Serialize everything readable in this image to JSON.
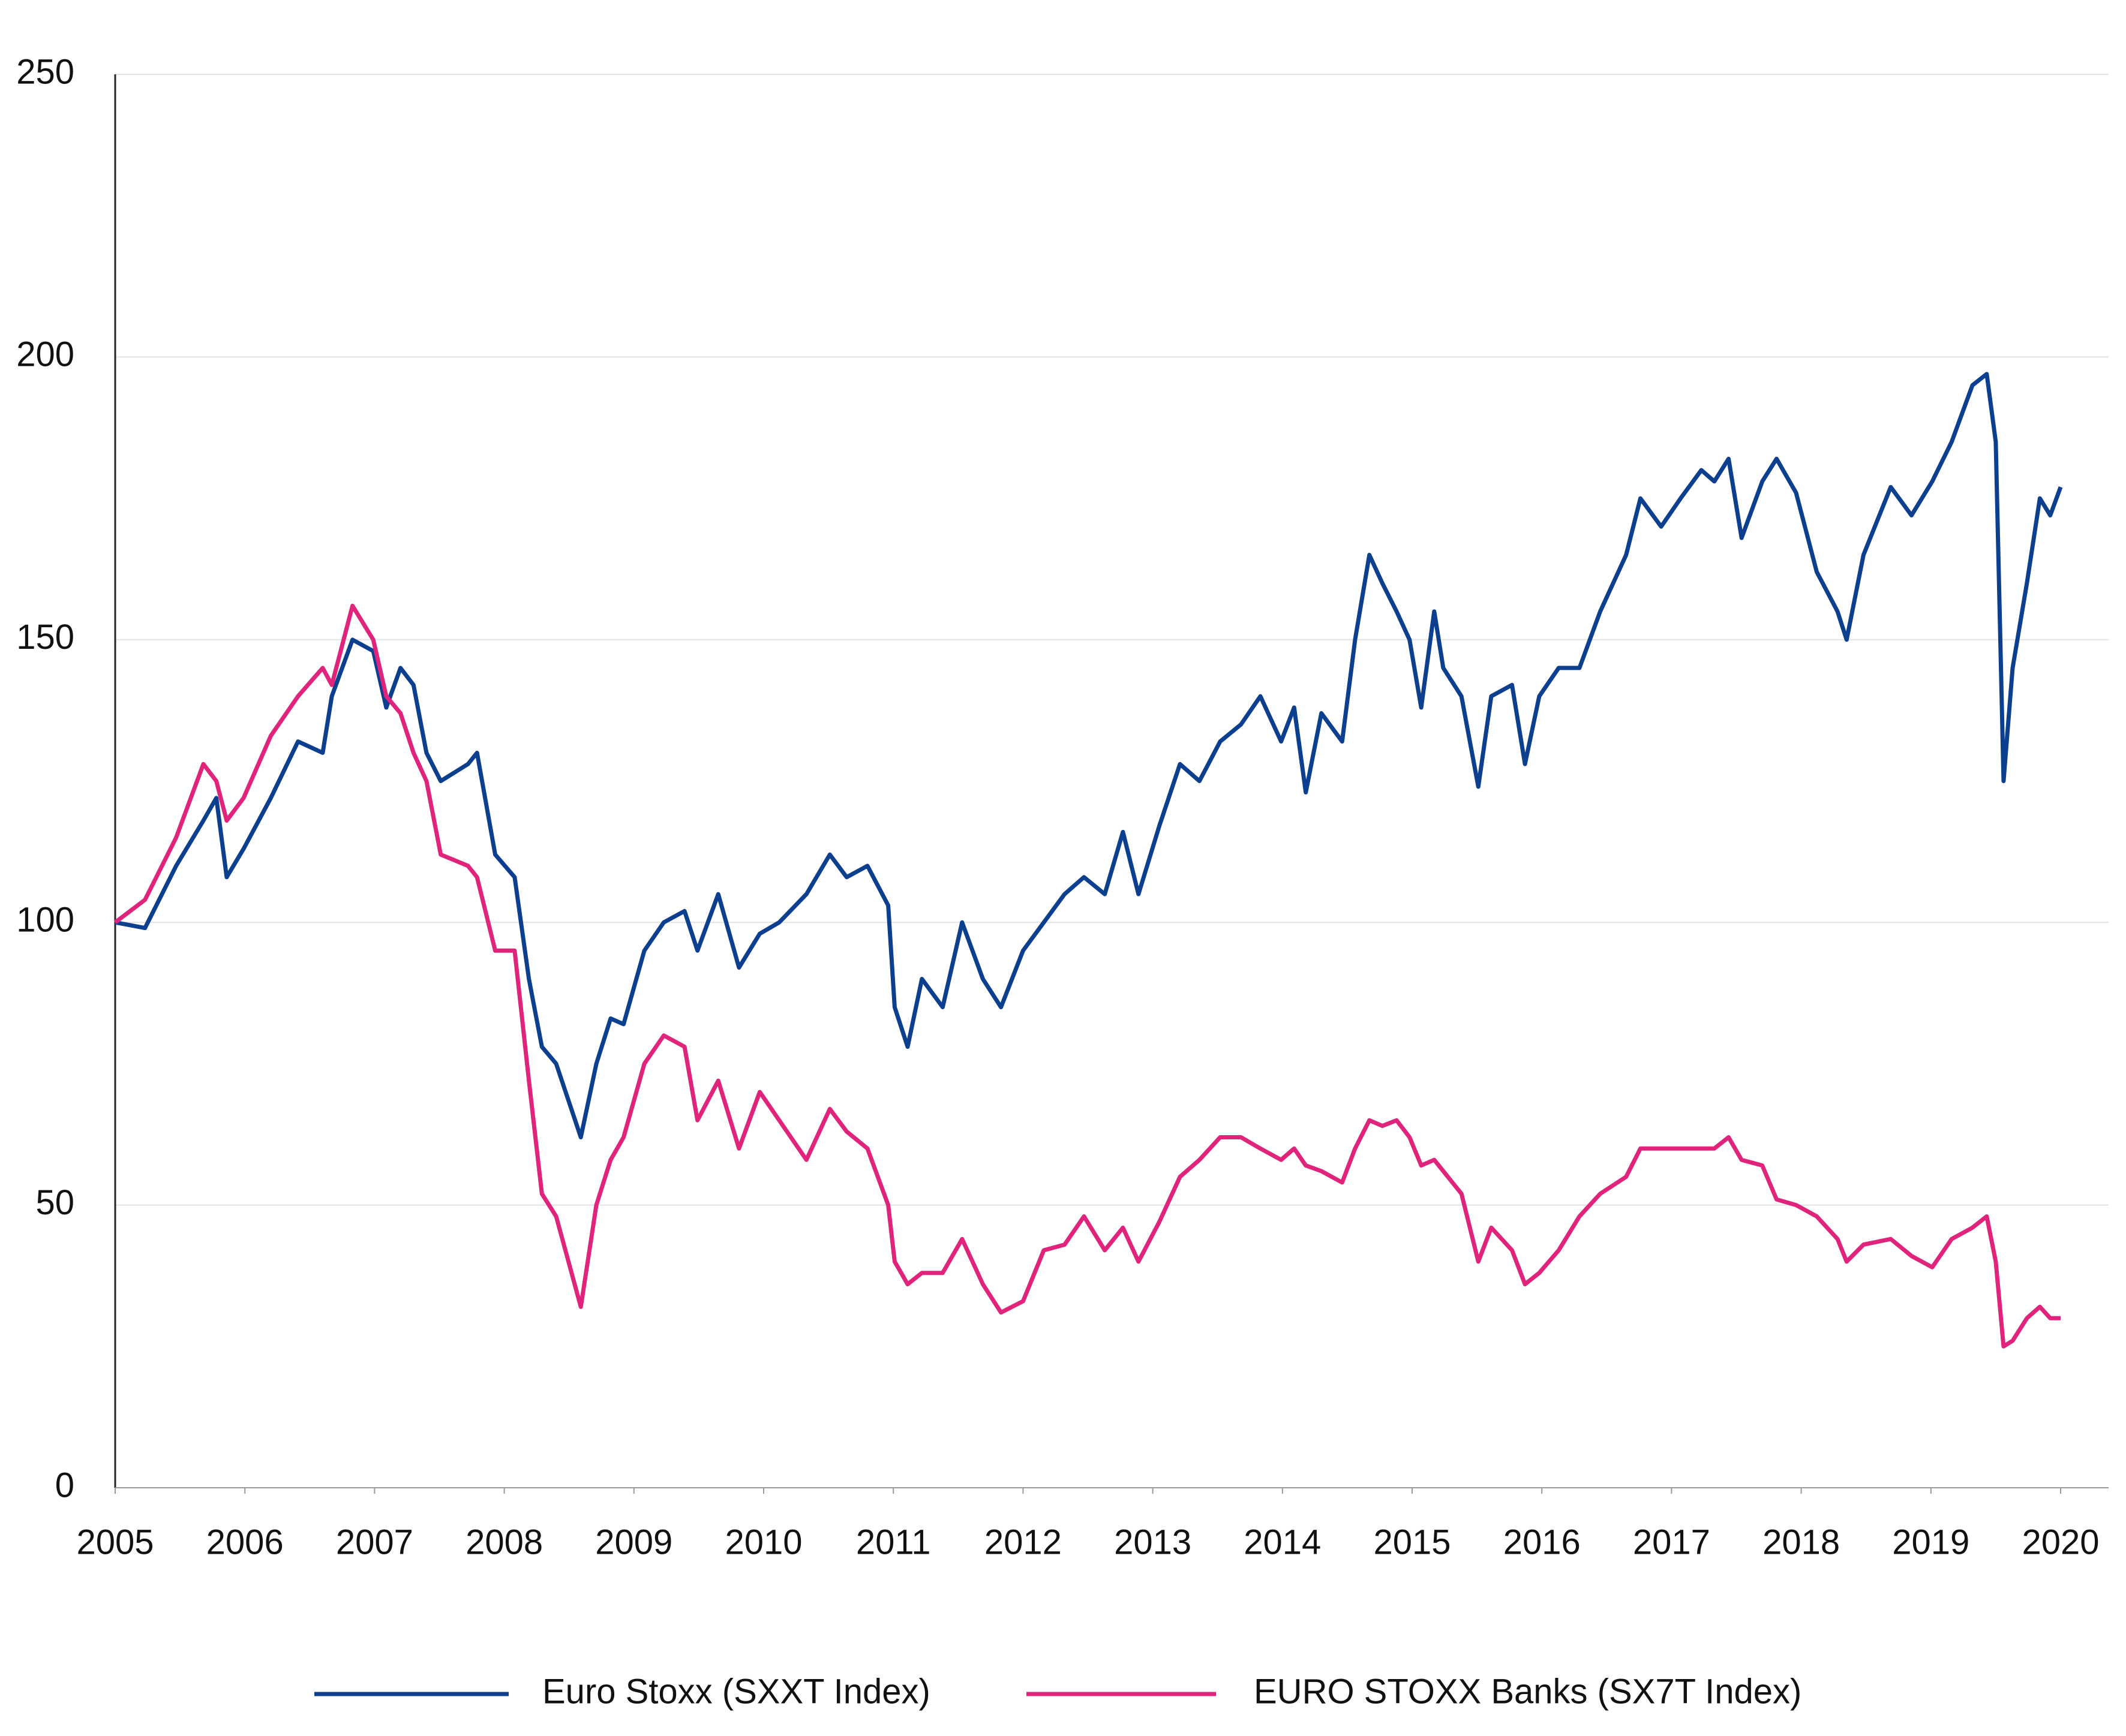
{
  "chart_data": {
    "type": "line",
    "x": [
      2005.0,
      2005.23,
      2005.47,
      2005.68,
      2005.78,
      2005.86,
      2005.99,
      2006.2,
      2006.41,
      2006.6,
      2006.67,
      2006.83,
      2006.99,
      2007.09,
      2007.2,
      2007.3,
      2007.4,
      2007.51,
      2007.72,
      2007.79,
      2007.93,
      2008.08,
      2008.19,
      2008.29,
      2008.4,
      2008.59,
      2008.71,
      2008.82,
      2008.92,
      2009.08,
      2009.23,
      2009.39,
      2009.49,
      2009.65,
      2009.81,
      2009.97,
      2010.12,
      2010.33,
      2010.51,
      2010.64,
      2010.8,
      2010.96,
      2011.01,
      2011.11,
      2011.22,
      2011.38,
      2011.53,
      2011.69,
      2011.83,
      2012.0,
      2012.16,
      2012.32,
      2012.47,
      2012.63,
      2012.77,
      2012.89,
      2013.05,
      2013.21,
      2013.36,
      2013.52,
      2013.68,
      2013.83,
      2013.99,
      2014.09,
      2014.18,
      2014.3,
      2014.46,
      2014.56,
      2014.67,
      2014.77,
      2014.88,
      2014.98,
      2015.07,
      2015.17,
      2015.24,
      2015.38,
      2015.51,
      2015.61,
      2015.77,
      2015.87,
      2015.98,
      2016.13,
      2016.29,
      2016.45,
      2016.65,
      2016.76,
      2016.92,
      2017.07,
      2017.23,
      2017.33,
      2017.44,
      2017.54,
      2017.7,
      2017.81,
      2017.96,
      2018.12,
      2018.28,
      2018.35,
      2018.48,
      2018.69,
      2018.85,
      2019.01,
      2019.16,
      2019.32,
      2019.43,
      2019.5,
      2019.56,
      2019.63,
      2019.74,
      2019.84,
      2019.92,
      2020.0
    ],
    "series": [
      {
        "name": "Euro Stoxx (SXXT Index)",
        "color": "#0d3f8f",
        "values": [
          100,
          99,
          110,
          118,
          122,
          108,
          113,
          122,
          132,
          130,
          140,
          150,
          148,
          138,
          145,
          142,
          130,
          125,
          128,
          130,
          112,
          108,
          90,
          78,
          75,
          62,
          75,
          83,
          82,
          95,
          100,
          102,
          95,
          105,
          92,
          98,
          100,
          105,
          112,
          108,
          110,
          103,
          85,
          78,
          90,
          85,
          100,
          90,
          85,
          95,
          100,
          105,
          108,
          105,
          116,
          105,
          117,
          128,
          125,
          132,
          135,
          140,
          132,
          138,
          123,
          137,
          132,
          150,
          165,
          160,
          155,
          150,
          138,
          155,
          145,
          140,
          124,
          140,
          142,
          128,
          140,
          145,
          145,
          155,
          165,
          175,
          170,
          175,
          180,
          178,
          182,
          168,
          178,
          182,
          176,
          162,
          155,
          150,
          165,
          177,
          172,
          178,
          185,
          195,
          197,
          185,
          125,
          145,
          160,
          175,
          172,
          177
        ]
      },
      {
        "name": "EURO STOXX Banks (SX7T Index)",
        "color": "#e0247b",
        "values": [
          100,
          104,
          115,
          128,
          125,
          118,
          122,
          133,
          140,
          145,
          142,
          156,
          150,
          140,
          137,
          130,
          125,
          112,
          110,
          108,
          95,
          95,
          72,
          52,
          48,
          32,
          50,
          58,
          62,
          75,
          80,
          78,
          65,
          72,
          60,
          70,
          65,
          58,
          67,
          63,
          60,
          50,
          40,
          36,
          38,
          38,
          44,
          36,
          31,
          33,
          42,
          43,
          48,
          42,
          46,
          40,
          47,
          55,
          58,
          62,
          62,
          60,
          58,
          60,
          57,
          56,
          54,
          60,
          65,
          64,
          65,
          62,
          57,
          58,
          56,
          52,
          40,
          46,
          42,
          36,
          38,
          42,
          48,
          52,
          55,
          60,
          60,
          60,
          60,
          60,
          62,
          58,
          57,
          51,
          50,
          48,
          44,
          40,
          43,
          44,
          41,
          39,
          44,
          46,
          48,
          40,
          25,
          26,
          30,
          32,
          30,
          30
        ]
      }
    ],
    "xlim": [
      2005,
      2020.37
    ],
    "xticks": [
      2005,
      2006,
      2007,
      2008,
      2009,
      2010,
      2011,
      2012,
      2013,
      2014,
      2015,
      2016,
      2017,
      2018,
      2019,
      2020
    ],
    "ylim": [
      0,
      250
    ],
    "yticks": [
      0,
      50,
      100,
      150,
      200,
      250
    ],
    "grid": true,
    "legend": "bottom"
  }
}
